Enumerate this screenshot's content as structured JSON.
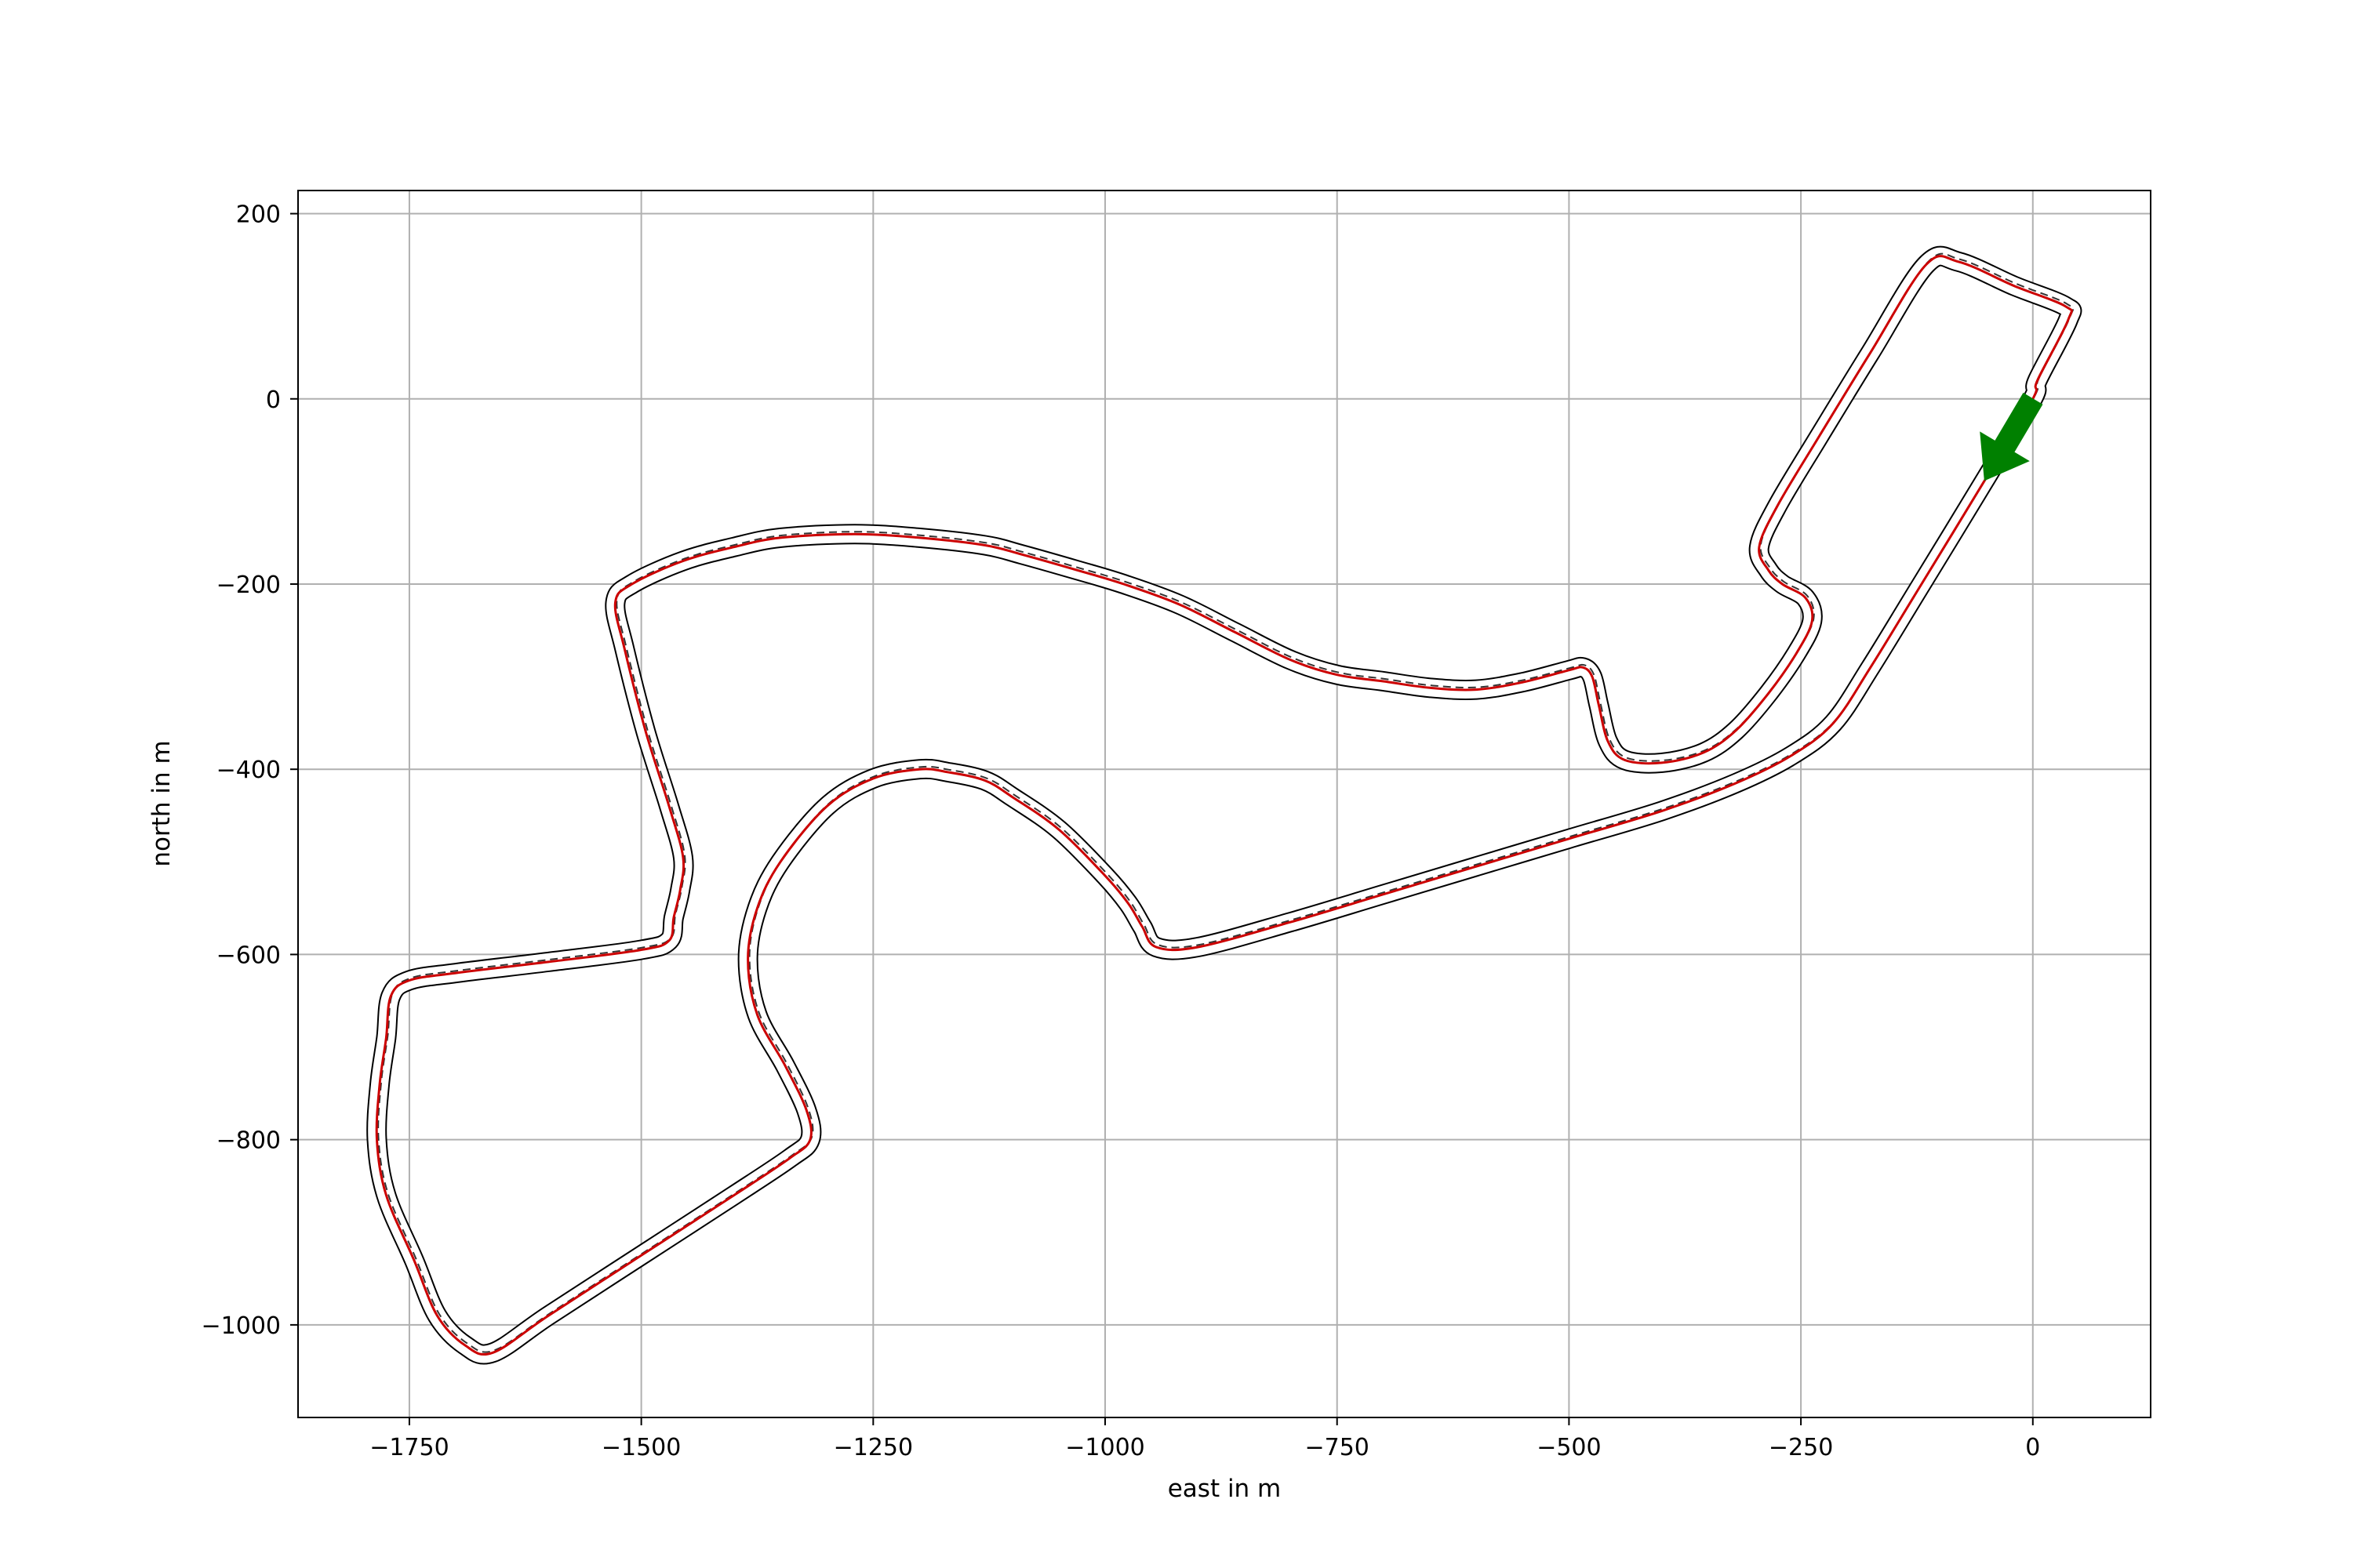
{
  "chart_data": {
    "type": "line",
    "title": "",
    "xlabel": "east in m",
    "ylabel": "north in m",
    "xlim": [
      -1870,
      127
    ],
    "ylim": [
      -1100,
      225
    ],
    "grid": true,
    "xticks": [
      -1750,
      -1500,
      -1250,
      -1000,
      -750,
      -500,
      -250,
      0
    ],
    "yticks": [
      200,
      0,
      -200,
      -400,
      -600,
      -800,
      -1000
    ],
    "xtick_labels": [
      "−1750",
      "−1500",
      "−1250",
      "−1000",
      "−750",
      "−500",
      "−250",
      "0"
    ],
    "ytick_labels": [
      "200",
      "0",
      "−200",
      "−400",
      "−600",
      "−800",
      "−1000"
    ],
    "colors": {
      "track_boundary": "#000000",
      "trajectory": "#cc0000",
      "reference_line": "#333333",
      "start_arrow": "#008000",
      "grid": "#b0b0b0"
    },
    "start_arrow": {
      "tail": [
        0,
        0
      ],
      "head": [
        -52,
        -88
      ]
    },
    "centerline": [
      [
        0,
        0
      ],
      [
        -50,
        -85
      ],
      [
        -120,
        -200
      ],
      [
        -175,
        -290
      ],
      [
        -215,
        -350
      ],
      [
        -260,
        -385
      ],
      [
        -320,
        -415
      ],
      [
        -400,
        -445
      ],
      [
        -500,
        -475
      ],
      [
        -600,
        -505
      ],
      [
        -700,
        -535
      ],
      [
        -800,
        -565
      ],
      [
        -900,
        -592
      ],
      [
        -945,
        -592
      ],
      [
        -960,
        -570
      ],
      [
        -975,
        -545
      ],
      [
        -1000,
        -515
      ],
      [
        -1050,
        -465
      ],
      [
        -1100,
        -430
      ],
      [
        -1130,
        -412
      ],
      [
        -1170,
        -403
      ],
      [
        -1200,
        -400
      ],
      [
        -1250,
        -410
      ],
      [
        -1300,
        -440
      ],
      [
        -1350,
        -500
      ],
      [
        -1375,
        -550
      ],
      [
        -1385,
        -605
      ],
      [
        -1375,
        -665
      ],
      [
        -1345,
        -720
      ],
      [
        -1322,
        -768
      ],
      [
        -1318,
        -800
      ],
      [
        -1340,
        -820
      ],
      [
        -1400,
        -860
      ],
      [
        -1500,
        -925
      ],
      [
        -1600,
        -990
      ],
      [
        -1660,
        -1030
      ],
      [
        -1690,
        -1022
      ],
      [
        -1720,
        -990
      ],
      [
        -1745,
        -930
      ],
      [
        -1775,
        -860
      ],
      [
        -1785,
        -800
      ],
      [
        -1782,
        -740
      ],
      [
        -1775,
        -690
      ],
      [
        -1770,
        -645
      ],
      [
        -1750,
        -628
      ],
      [
        -1700,
        -620
      ],
      [
        -1600,
        -608
      ],
      [
        -1500,
        -595
      ],
      [
        -1470,
        -585
      ],
      [
        -1465,
        -560
      ],
      [
        -1458,
        -530
      ],
      [
        -1455,
        -495
      ],
      [
        -1470,
        -440
      ],
      [
        -1495,
        -360
      ],
      [
        -1518,
        -270
      ],
      [
        -1528,
        -220
      ],
      [
        -1510,
        -200
      ],
      [
        -1455,
        -175
      ],
      [
        -1400,
        -160
      ],
      [
        -1350,
        -150
      ],
      [
        -1270,
        -146
      ],
      [
        -1200,
        -150
      ],
      [
        -1130,
        -158
      ],
      [
        -1090,
        -168
      ],
      [
        -1030,
        -185
      ],
      [
        -980,
        -200
      ],
      [
        -920,
        -222
      ],
      [
        -860,
        -252
      ],
      [
        -800,
        -282
      ],
      [
        -750,
        -298
      ],
      [
        -700,
        -305
      ],
      [
        -650,
        -312
      ],
      [
        -600,
        -314
      ],
      [
        -550,
        -306
      ],
      [
        -500,
        -293
      ],
      [
        -485,
        -290
      ],
      [
        -475,
        -300
      ],
      [
        -468,
        -330
      ],
      [
        -458,
        -370
      ],
      [
        -440,
        -390
      ],
      [
        -400,
        -393
      ],
      [
        -355,
        -382
      ],
      [
        -320,
        -358
      ],
      [
        -285,
        -318
      ],
      [
        -255,
        -275
      ],
      [
        -238,
        -240
      ],
      [
        -245,
        -215
      ],
      [
        -270,
        -200
      ],
      [
        -285,
        -185
      ],
      [
        -295,
        -160
      ],
      [
        -275,
        -115
      ],
      [
        -230,
        -40
      ],
      [
        -175,
        50
      ],
      [
        -115,
        145
      ],
      [
        -80,
        148
      ],
      [
        -20,
        122
      ],
      [
        35,
        100
      ],
      [
        38,
        85
      ],
      [
        5,
        20
      ],
      [
        0,
        0
      ]
    ]
  }
}
